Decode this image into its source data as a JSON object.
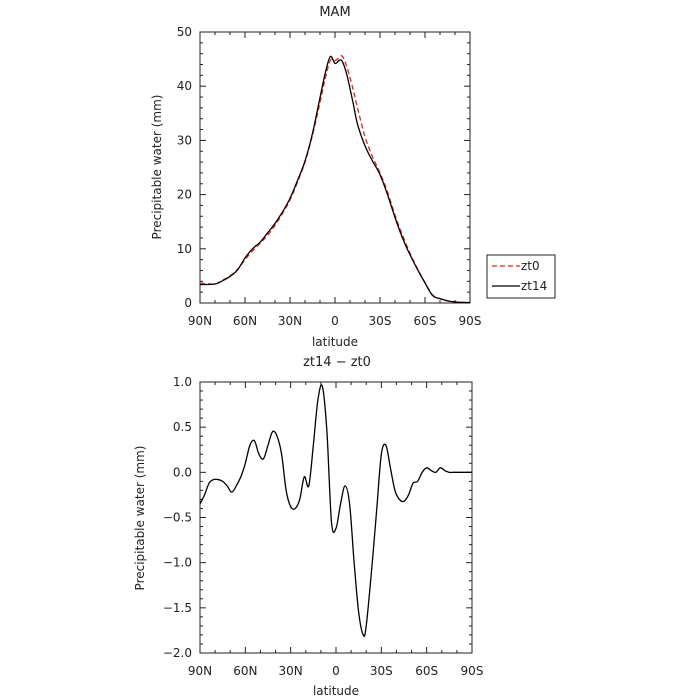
{
  "chart_data": [
    {
      "type": "line",
      "title": "MAM",
      "xlabel": "latitude",
      "ylabel": "Precipitable water (mm)",
      "ylim": [
        0,
        50
      ],
      "yticks": [
        "0",
        "10",
        "20",
        "30",
        "40",
        "50"
      ],
      "xlim": [
        -90,
        90
      ],
      "xtick_values": [
        -90,
        -60,
        -30,
        0,
        30,
        60,
        90
      ],
      "xticks": [
        "90N",
        "60N",
        "30N",
        "0",
        "30S",
        "60S",
        "90S"
      ],
      "x_direction": "north_to_south",
      "legend": {
        "placement": "right-outside",
        "entries": [
          {
            "name": "zt0",
            "color": "#e02020",
            "dash": "dashed"
          },
          {
            "name": "zt14",
            "color": "#000000",
            "dash": "solid"
          }
        ]
      },
      "series": [
        {
          "name": "zt0",
          "color": "#e02020",
          "dash": "dashed",
          "x": [
            -90,
            -80,
            -75,
            -70,
            -65,
            -60,
            -55,
            -50,
            -45,
            -40,
            -35,
            -30,
            -25,
            -20,
            -15,
            -10,
            -6,
            -3,
            0,
            3,
            5,
            8,
            12,
            15,
            20,
            25,
            30,
            35,
            40,
            45,
            50,
            55,
            60,
            65,
            70,
            75,
            80,
            85,
            90
          ],
          "y": [
            3.7,
            3.5,
            4.2,
            5.0,
            6.2,
            8.0,
            9.6,
            11.0,
            12.5,
            14.3,
            16.5,
            19.0,
            22.3,
            26.0,
            31.0,
            37.0,
            42.0,
            44.8,
            44.7,
            45.3,
            45.5,
            43.5,
            39.5,
            36.0,
            30.7,
            27.0,
            24.0,
            20.5,
            16.2,
            12.5,
            9.2,
            6.3,
            3.8,
            1.5,
            0.8,
            0.4,
            0.2,
            0.1,
            0.1
          ]
        },
        {
          "name": "zt14",
          "color": "#000000",
          "dash": "solid",
          "x": [
            -90,
            -80,
            -75,
            -70,
            -65,
            -60,
            -55,
            -50,
            -45,
            -40,
            -35,
            -30,
            -25,
            -20,
            -15,
            -10,
            -6,
            -3,
            0,
            3,
            5,
            8,
            12,
            15,
            20,
            25,
            30,
            35,
            40,
            45,
            50,
            55,
            60,
            65,
            70,
            75,
            80,
            85,
            90
          ],
          "y": [
            3.4,
            3.5,
            4.1,
            4.9,
            6.1,
            8.3,
            10.0,
            11.2,
            12.9,
            14.7,
            16.8,
            19.3,
            22.6,
            26.2,
            31.3,
            37.9,
            43.0,
            45.5,
            44.2,
            44.8,
            44.5,
            42.0,
            37.0,
            33.0,
            29.0,
            26.2,
            23.7,
            20.0,
            15.8,
            12.0,
            8.9,
            6.2,
            3.7,
            1.4,
            0.8,
            0.4,
            0.2,
            0.1,
            0.1
          ]
        }
      ]
    },
    {
      "type": "line",
      "title": "zt14 − zt0",
      "xlabel": "latitude",
      "ylabel": "Precipitable water (mm)",
      "ylim": [
        -2.0,
        1.0
      ],
      "yticks": [
        "−2.0",
        "−1.5",
        "−1.0",
        "−0.5",
        "0.0",
        "0.5",
        "1.0"
      ],
      "xlim": [
        -90,
        90
      ],
      "xtick_values": [
        -90,
        -60,
        -30,
        0,
        30,
        60,
        90
      ],
      "xticks": [
        "90N",
        "60N",
        "30N",
        "0",
        "30S",
        "60S",
        "90S"
      ],
      "x_direction": "north_to_south",
      "series": [
        {
          "name": "",
          "color": "#000000",
          "dash": "solid",
          "x": [
            -90,
            -87,
            -84,
            -81,
            -78,
            -75,
            -72,
            -69,
            -66,
            -63,
            -60,
            -57,
            -54,
            -51,
            -48,
            -45,
            -42,
            -39,
            -36,
            -33,
            -30,
            -27,
            -24,
            -21,
            -18,
            -15,
            -12,
            -9,
            -6,
            -3,
            0,
            3,
            6,
            9,
            12,
            15,
            18,
            20,
            24,
            27,
            30,
            33,
            36,
            39,
            42,
            45,
            48,
            51,
            54,
            57,
            60,
            63,
            66,
            69,
            72,
            75,
            78,
            81,
            84,
            87,
            90
          ],
          "y": [
            -0.35,
            -0.25,
            -0.12,
            -0.08,
            -0.08,
            -0.1,
            -0.15,
            -0.22,
            -0.15,
            -0.05,
            0.1,
            0.3,
            0.35,
            0.2,
            0.15,
            0.3,
            0.45,
            0.4,
            0.2,
            -0.2,
            -0.38,
            -0.4,
            -0.3,
            -0.05,
            -0.15,
            0.3,
            0.8,
            0.95,
            0.45,
            -0.55,
            -0.62,
            -0.35,
            -0.15,
            -0.35,
            -1.0,
            -1.55,
            -1.8,
            -1.7,
            -1.0,
            -0.4,
            0.2,
            0.3,
            0.05,
            -0.2,
            -0.3,
            -0.32,
            -0.25,
            -0.12,
            -0.1,
            0.0,
            0.05,
            0.02,
            0.0,
            0.05,
            0.02,
            0.0,
            0.0,
            0.0,
            0.0,
            0.0,
            0.0
          ]
        }
      ]
    }
  ]
}
